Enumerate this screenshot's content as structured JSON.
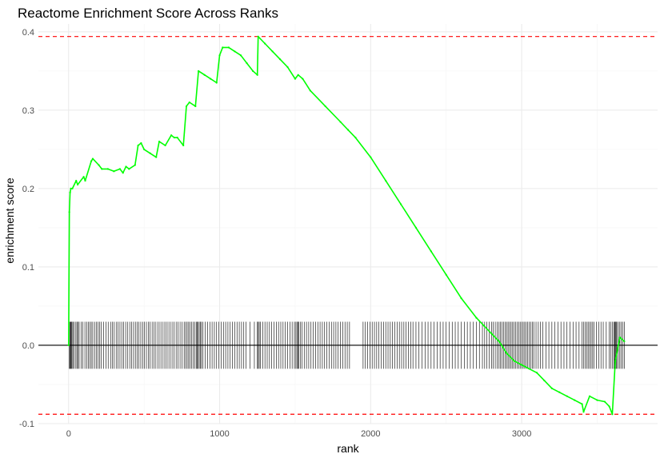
{
  "chart_data": {
    "type": "line",
    "title": "Reactome Enrichment Score Across Ranks",
    "xlabel": "rank",
    "ylabel": "enrichment score",
    "xlim": [
      -200,
      3900
    ],
    "ylim": [
      -0.1,
      0.41
    ],
    "x_ticks": [
      0,
      1000,
      2000,
      3000
    ],
    "y_ticks": [
      -0.1,
      0.0,
      0.1,
      0.2,
      0.3,
      0.4
    ],
    "x_tick_labels": [
      "0",
      "1000",
      "2000",
      "3000"
    ],
    "y_tick_labels": [
      "-0.1",
      "0.0",
      "0.1",
      "0.2",
      "0.3",
      "0.4"
    ],
    "grid": true,
    "legend": "none",
    "colors": {
      "line": "#00ff00",
      "threshold": "#ff0000",
      "rug": "#000000",
      "zero": "#000000"
    },
    "thresholds": [
      0.394,
      -0.088
    ],
    "series": [
      {
        "x": [
          0,
          5,
          10,
          15,
          25,
          50,
          60,
          100,
          110,
          150,
          160,
          200,
          220,
          260,
          300,
          340,
          360,
          380,
          400,
          440,
          460,
          480,
          500,
          540,
          580,
          600,
          640,
          680,
          700,
          720,
          760,
          780,
          800,
          840,
          860,
          900,
          940,
          980,
          1000,
          1020,
          1060,
          1100,
          1140,
          1180,
          1220,
          1250,
          1255,
          1300,
          1350,
          1400,
          1450,
          1500,
          1520,
          1550,
          1600,
          1700,
          1800,
          1850,
          1900,
          2000,
          2100,
          2200,
          2300,
          2400,
          2500,
          2600,
          2700,
          2750,
          2800,
          2850,
          2900,
          2950,
          3000,
          3050,
          3100,
          3150,
          3200,
          3250,
          3300,
          3350,
          3400,
          3410,
          3450,
          3500,
          3550,
          3580,
          3600,
          3620,
          3650,
          3680
        ],
        "y": [
          0.0,
          0.17,
          0.195,
          0.2,
          0.2,
          0.21,
          0.205,
          0.215,
          0.21,
          0.235,
          0.238,
          0.23,
          0.225,
          0.225,
          0.222,
          0.225,
          0.22,
          0.228,
          0.225,
          0.23,
          0.255,
          0.258,
          0.25,
          0.245,
          0.24,
          0.26,
          0.255,
          0.268,
          0.265,
          0.265,
          0.255,
          0.305,
          0.31,
          0.305,
          0.35,
          0.345,
          0.34,
          0.335,
          0.37,
          0.38,
          0.38,
          0.375,
          0.37,
          0.36,
          0.35,
          0.345,
          0.394,
          0.385,
          0.375,
          0.365,
          0.355,
          0.34,
          0.345,
          0.34,
          0.325,
          0.305,
          0.285,
          0.275,
          0.265,
          0.24,
          0.21,
          0.18,
          0.15,
          0.12,
          0.09,
          0.06,
          0.035,
          0.025,
          0.015,
          0.005,
          -0.01,
          -0.02,
          -0.025,
          -0.03,
          -0.035,
          -0.045,
          -0.055,
          -0.06,
          -0.065,
          -0.07,
          -0.075,
          -0.085,
          -0.065,
          -0.07,
          -0.072,
          -0.078,
          -0.088,
          -0.02,
          0.01,
          0.005
        ]
      }
    ],
    "rug_x": [
      3,
      8,
      13,
      17,
      22,
      28,
      35,
      48,
      55,
      62,
      70,
      83,
      95,
      108,
      120,
      130,
      140,
      150,
      160,
      172,
      185,
      195,
      205,
      215,
      232,
      248,
      262,
      278,
      290,
      302,
      315,
      328,
      340,
      352,
      365,
      378,
      392,
      405,
      418,
      430,
      442,
      455,
      466,
      478,
      490,
      502,
      515,
      528,
      540,
      553,
      566,
      578,
      592,
      605,
      618,
      632,
      645,
      658,
      672,
      685,
      698,
      712,
      725,
      738,
      752,
      765,
      775,
      785,
      795,
      805,
      815,
      825,
      835,
      845,
      852,
      858,
      865,
      872,
      880,
      890,
      905,
      920,
      935,
      950,
      965,
      980,
      995,
      1010,
      1025,
      1040,
      1055,
      1070,
      1085,
      1100,
      1115,
      1130,
      1145,
      1160,
      1175,
      1200,
      1230,
      1248,
      1256,
      1262,
      1270,
      1285,
      1300,
      1315,
      1330,
      1345,
      1360,
      1375,
      1390,
      1405,
      1420,
      1435,
      1450,
      1465,
      1480,
      1495,
      1505,
      1512,
      1518,
      1525,
      1535,
      1545,
      1560,
      1575,
      1590,
      1605,
      1620,
      1635,
      1650,
      1665,
      1680,
      1695,
      1710,
      1725,
      1740,
      1755,
      1770,
      1785,
      1800,
      1815,
      1830,
      1845,
      1860,
      1950,
      1965,
      1980,
      1995,
      2010,
      2025,
      2040,
      2055,
      2070,
      2085,
      2100,
      2115,
      2130,
      2145,
      2160,
      2175,
      2190,
      2205,
      2220,
      2235,
      2250,
      2265,
      2280,
      2300,
      2320,
      2340,
      2360,
      2380,
      2400,
      2420,
      2440,
      2460,
      2480,
      2500,
      2520,
      2540,
      2560,
      2580,
      2600,
      2620,
      2640,
      2660,
      2680,
      2700,
      2720,
      2740,
      2755,
      2770,
      2785,
      2800,
      2812,
      2825,
      2838,
      2850,
      2860,
      2870,
      2880,
      2890,
      2900,
      2910,
      2920,
      2930,
      2940,
      2950,
      2960,
      2970,
      2980,
      2990,
      3000,
      3010,
      3020,
      3030,
      3040,
      3050,
      3060,
      3070,
      3080,
      3095,
      3110,
      3125,
      3140,
      3160,
      3180,
      3200,
      3220,
      3240,
      3260,
      3280,
      3300,
      3320,
      3340,
      3360,
      3380,
      3400,
      3410,
      3420,
      3430,
      3440,
      3450,
      3460,
      3470,
      3480,
      3495,
      3510,
      3525,
      3540,
      3560,
      3580,
      3590,
      3600,
      3610,
      3615,
      3620,
      3625,
      3630,
      3640,
      3650,
      3660,
      3670,
      3680
    ]
  }
}
